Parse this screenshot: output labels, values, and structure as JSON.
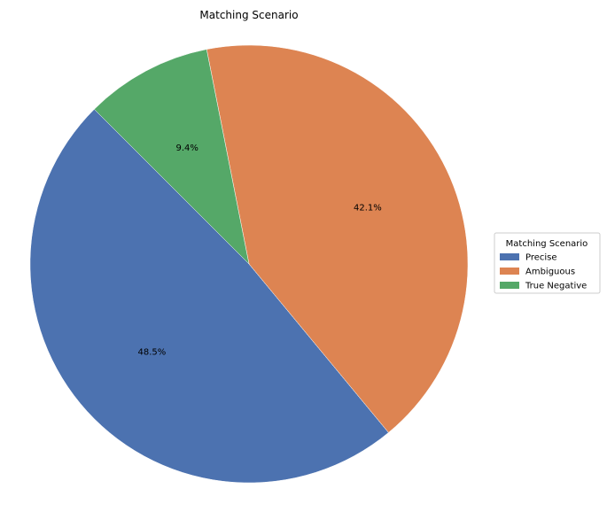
{
  "chart_data": {
    "type": "pie",
    "title": "Matching Scenario",
    "categories": [
      "Precise",
      "Ambiguous",
      "True Negative"
    ],
    "values": [
      48.5,
      42.1,
      9.4
    ],
    "value_labels": [
      "48.5%",
      "42.1%",
      "9.4%"
    ],
    "colors": [
      "#4c72b0",
      "#dd8452",
      "#55a868"
    ],
    "legend_title": "Matching Scenario",
    "legend_position": "center-right"
  }
}
